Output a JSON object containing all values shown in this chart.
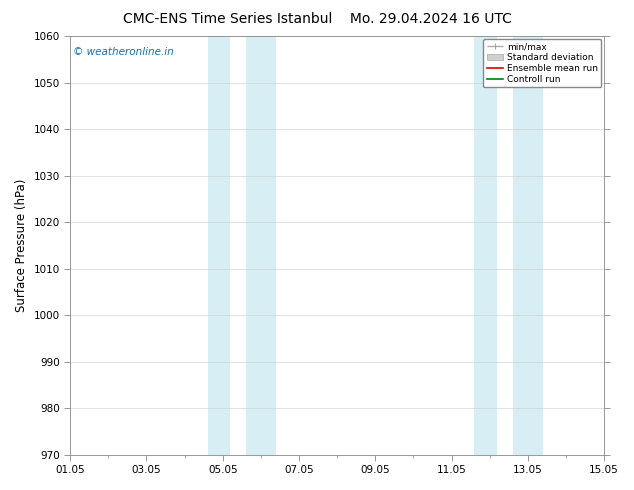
{
  "title": "CMC-ENS Time Series Istanbul    Mo. 29.04.2024 16 UTC",
  "ylabel": "Surface Pressure (hPa)",
  "ylim": [
    970,
    1060
  ],
  "yticks": [
    970,
    980,
    990,
    1000,
    1010,
    1020,
    1030,
    1040,
    1050,
    1060
  ],
  "xlim_num": [
    0,
    14
  ],
  "xtick_positions": [
    0,
    2,
    4,
    6,
    8,
    10,
    12,
    14
  ],
  "xtick_labels": [
    "01.05",
    "03.05",
    "05.05",
    "07.05",
    "09.05",
    "11.05",
    "13.05",
    "15.05"
  ],
  "shaded_bands": [
    {
      "xmin": 3.6,
      "xmax": 4.2
    },
    {
      "xmin": 4.6,
      "xmax": 5.4
    },
    {
      "xmin": 10.6,
      "xmax": 11.2
    },
    {
      "xmin": 11.6,
      "xmax": 12.4
    }
  ],
  "shade_color": "#d8eef5",
  "watermark": "© weatheronline.in",
  "watermark_color": "#1a6fa8",
  "legend_entries": [
    {
      "label": "min/max",
      "color": "#aaaaaa",
      "lw": 1.0
    },
    {
      "label": "Standard deviation",
      "color": "#cccccc",
      "lw": 5
    },
    {
      "label": "Ensemble mean run",
      "color": "#dd0000",
      "lw": 1.2
    },
    {
      "label": "Controll run",
      "color": "#008000",
      "lw": 1.2
    }
  ],
  "bg_color": "#ffffff",
  "grid_color": "#cccccc",
  "title_fontsize": 10,
  "tick_fontsize": 7.5,
  "ylabel_fontsize": 8.5
}
